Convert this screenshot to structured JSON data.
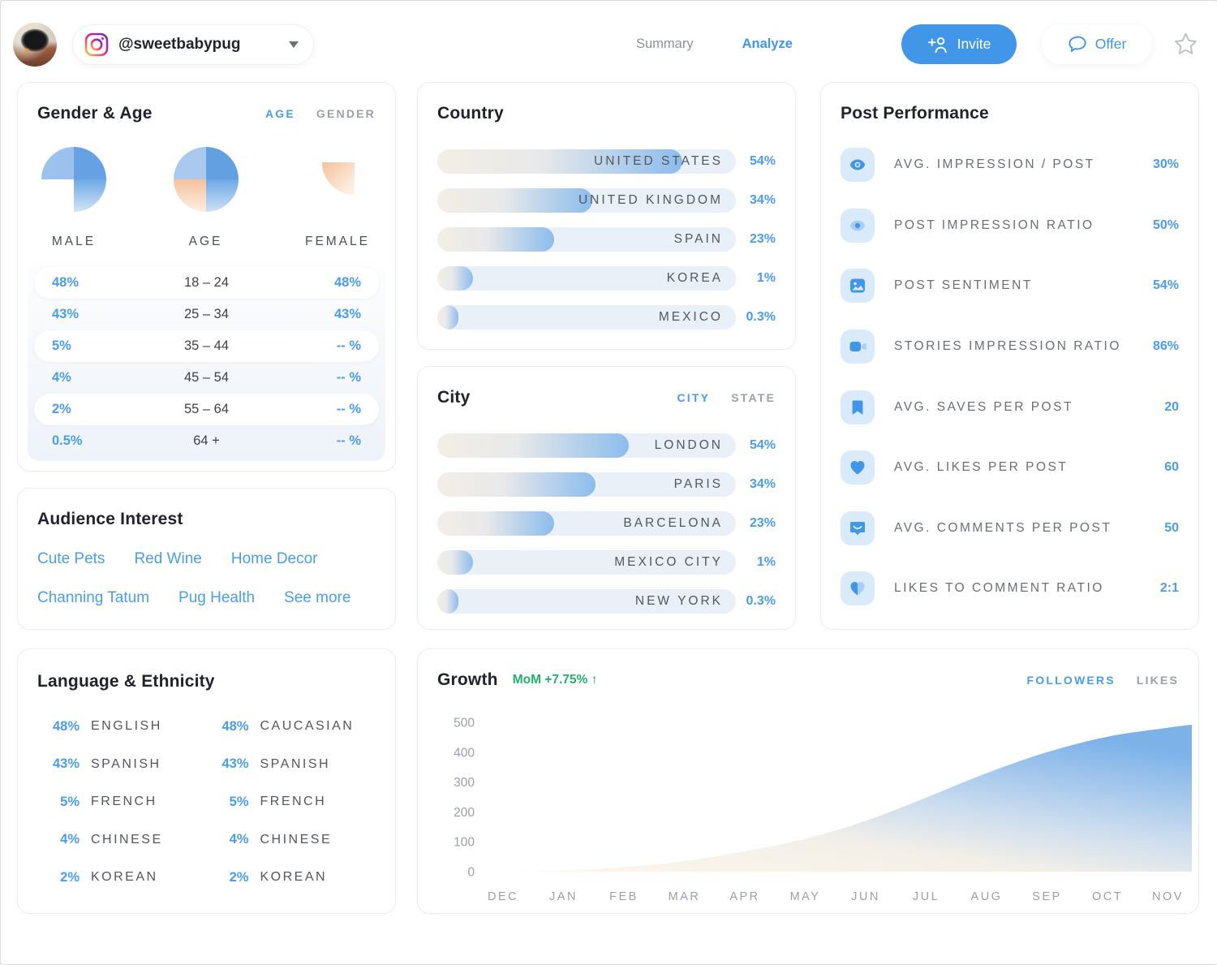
{
  "header": {
    "handle": "@sweetbabypug",
    "nav": [
      {
        "label": "Summary",
        "active": false
      },
      {
        "label": "Analyze",
        "active": true
      }
    ],
    "invite_label": "Invite",
    "offer_label": "Offer"
  },
  "gender_age": {
    "title": "Gender & Age",
    "tabs": [
      {
        "label": "AGE",
        "active": true
      },
      {
        "label": "GENDER",
        "active": false
      }
    ],
    "pie_labels": [
      "MALE",
      "AGE",
      "FEMALE"
    ],
    "rows": [
      {
        "male": "48%",
        "age": "18 – 24",
        "female": "48%"
      },
      {
        "male": "43%",
        "age": "25 – 34",
        "female": "43%"
      },
      {
        "male": "5%",
        "age": "35 – 44",
        "female": "-- %"
      },
      {
        "male": "4%",
        "age": "45 – 54",
        "female": "-- %"
      },
      {
        "male": "2%",
        "age": "55 – 64",
        "female": "-- %"
      },
      {
        "male": "0.5%",
        "age": "64 +",
        "female": "-- %"
      }
    ]
  },
  "country": {
    "title": "Country",
    "bars": [
      {
        "label": "UNITED STATES",
        "value": "54%",
        "fill_pct": 82
      },
      {
        "label": "UNITED KINGDOM",
        "value": "34%",
        "fill_pct": 52
      },
      {
        "label": "SPAIN",
        "value": "23%",
        "fill_pct": 39
      },
      {
        "label": "KOREA",
        "value": "1%",
        "fill_pct": 12
      },
      {
        "label": "MEXICO",
        "value": "0.3%",
        "fill_pct": 7
      }
    ]
  },
  "city": {
    "title": "City",
    "tabs": [
      {
        "label": "CITY",
        "active": true
      },
      {
        "label": "STATE",
        "active": false
      }
    ],
    "bars": [
      {
        "label": "LONDON",
        "value": "54%",
        "fill_pct": 64
      },
      {
        "label": "PARIS",
        "value": "34%",
        "fill_pct": 53
      },
      {
        "label": "BARCELONA",
        "value": "23%",
        "fill_pct": 39
      },
      {
        "label": "MEXICO CITY",
        "value": "1%",
        "fill_pct": 12
      },
      {
        "label": "NEW YORK",
        "value": "0.3%",
        "fill_pct": 7
      }
    ]
  },
  "post_performance": {
    "title": "Post Performance",
    "metrics": [
      {
        "icon": "impressions-eye-icon",
        "label": "AVG. IMPRESSION / POST",
        "value": "30%"
      },
      {
        "icon": "impression-ratio-eye-icon",
        "label": "POST IMPRESSION RATIO",
        "value": "50%"
      },
      {
        "icon": "post-image-icon",
        "label": "POST SENTIMENT",
        "value": "54%"
      },
      {
        "icon": "stories-video-icon",
        "label": "STORIES IMPRESSION RATIO",
        "value": "86%"
      },
      {
        "icon": "bookmark-icon",
        "label": "AVG. SAVES PER POST",
        "value": "20"
      },
      {
        "icon": "heart-icon",
        "label": "AVG. LIKES PER POST",
        "value": "60"
      },
      {
        "icon": "comment-icon",
        "label": "AVG. COMMENTS PER POST",
        "value": "50"
      },
      {
        "icon": "likes-comment-heart-icon",
        "label": "LIKES TO COMMENT RATIO",
        "value": "2:1"
      }
    ]
  },
  "audience_interest": {
    "title": "Audience Interest",
    "rows": [
      [
        "Cute Pets",
        "Red Wine",
        "Home Decor"
      ],
      [
        "Channing Tatum",
        "Pug Health",
        "See more"
      ]
    ]
  },
  "language_ethnicity": {
    "title": "Language & Ethnicity",
    "language": [
      {
        "value": "48%",
        "label": "ENGLISH"
      },
      {
        "value": "43%",
        "label": "SPANISH"
      },
      {
        "value": "5%",
        "label": "FRENCH"
      },
      {
        "value": "4%",
        "label": "CHINESE"
      },
      {
        "value": "2%",
        "label": "KOREAN"
      }
    ],
    "ethnicity": [
      {
        "value": "48%",
        "label": "CAUCASIAN"
      },
      {
        "value": "43%",
        "label": "SPANISH"
      },
      {
        "value": "5%",
        "label": "FRENCH"
      },
      {
        "value": "4%",
        "label": "CHINESE"
      },
      {
        "value": "2%",
        "label": "KOREAN"
      }
    ]
  },
  "growth": {
    "title": "Growth",
    "mom_label": "MoM +7.75%",
    "mom_arrow": "↑",
    "tabs": [
      {
        "label": "FOLLOWERS",
        "active": true
      },
      {
        "label": "LIKES",
        "active": false
      }
    ],
    "chart_data": {
      "type": "area",
      "series_name": "FOLLOWERS",
      "x": [
        "DEC",
        "JAN",
        "FEB",
        "MAR",
        "APR",
        "MAY",
        "JUN",
        "JUL",
        "AUG",
        "SEP",
        "OCT",
        "NOV"
      ],
      "values": [
        0,
        4,
        15,
        35,
        68,
        110,
        170,
        248,
        330,
        400,
        452,
        482
      ],
      "ylim": [
        0,
        500
      ],
      "yticks": [
        0,
        100,
        200,
        300,
        400,
        500
      ],
      "grid": false,
      "legend_position": "top-right"
    }
  },
  "colors": {
    "accent_blue": "#4a9de9",
    "button_blue": "#4196e8",
    "growth_green": "#1fb26b",
    "bar_blue": "#8cbcec",
    "bar_track": "#e9f0f8",
    "peach": "#f6c19b"
  }
}
